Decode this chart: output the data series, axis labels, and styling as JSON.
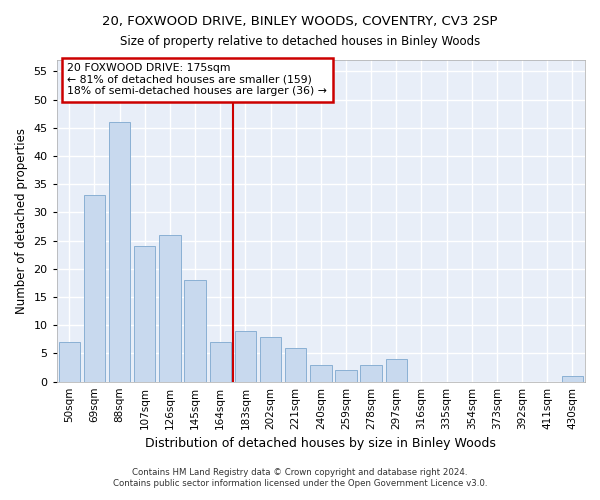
{
  "title_line1": "20, FOXWOOD DRIVE, BINLEY WOODS, COVENTRY, CV3 2SP",
  "title_line2": "Size of property relative to detached houses in Binley Woods",
  "xlabel": "Distribution of detached houses by size in Binley Woods",
  "ylabel": "Number of detached properties",
  "categories": [
    "50sqm",
    "69sqm",
    "88sqm",
    "107sqm",
    "126sqm",
    "145sqm",
    "164sqm",
    "183sqm",
    "202sqm",
    "221sqm",
    "240sqm",
    "259sqm",
    "278sqm",
    "297sqm",
    "316sqm",
    "335sqm",
    "354sqm",
    "373sqm",
    "392sqm",
    "411sqm",
    "430sqm"
  ],
  "values": [
    7,
    33,
    46,
    24,
    26,
    18,
    7,
    9,
    8,
    6,
    3,
    2,
    3,
    4,
    0,
    0,
    0,
    0,
    0,
    0,
    1
  ],
  "bar_color": "#c8d9ee",
  "bar_edge_color": "#8ab0d4",
  "background_color": "#e8eef8",
  "grid_color": "#ffffff",
  "vline_color": "#cc0000",
  "vline_index": 6.5,
  "annotation_text_line1": "20 FOXWOOD DRIVE: 175sqm",
  "annotation_text_line2": "← 81% of detached houses are smaller (159)",
  "annotation_text_line3": "18% of semi-detached houses are larger (36) →",
  "annotation_box_edge_color": "#cc0000",
  "ylim": [
    0,
    57
  ],
  "yticks": [
    0,
    5,
    10,
    15,
    20,
    25,
    30,
    35,
    40,
    45,
    50,
    55
  ],
  "footer_line1": "Contains HM Land Registry data © Crown copyright and database right 2024.",
  "footer_line2": "Contains public sector information licensed under the Open Government Licence v3.0."
}
